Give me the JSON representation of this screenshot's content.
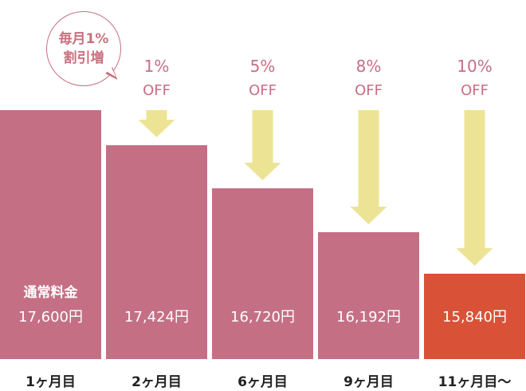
{
  "bubble": {
    "line1": "毎月1%",
    "line2": "割引増"
  },
  "chart_data": {
    "type": "bar",
    "ylim": [
      0,
      17600
    ],
    "categories": [
      "1ヶ月目",
      "2ヶ月目",
      "6ヶ月目",
      "9ヶ月目",
      "11ヶ月目〜"
    ],
    "values": [
      17600,
      17424,
      16720,
      16192,
      15840
    ],
    "value_labels": [
      "17,600円",
      "17,424円",
      "16,720円",
      "16,192円",
      "15,840円"
    ],
    "bar_top_labels": [
      "通常料金",
      "",
      "",
      "",
      ""
    ],
    "discount_labels": [
      "",
      "1%",
      "5%",
      "8%",
      "10%"
    ],
    "discount_suffix": "OFF",
    "colors": {
      "bar": "#c56f85",
      "highlight": "#d95237",
      "arrow": "#ede395",
      "label": "#c56f85",
      "text_on_bar": "#ffffff",
      "category_text": "#222222"
    },
    "highlight_index": 4
  }
}
